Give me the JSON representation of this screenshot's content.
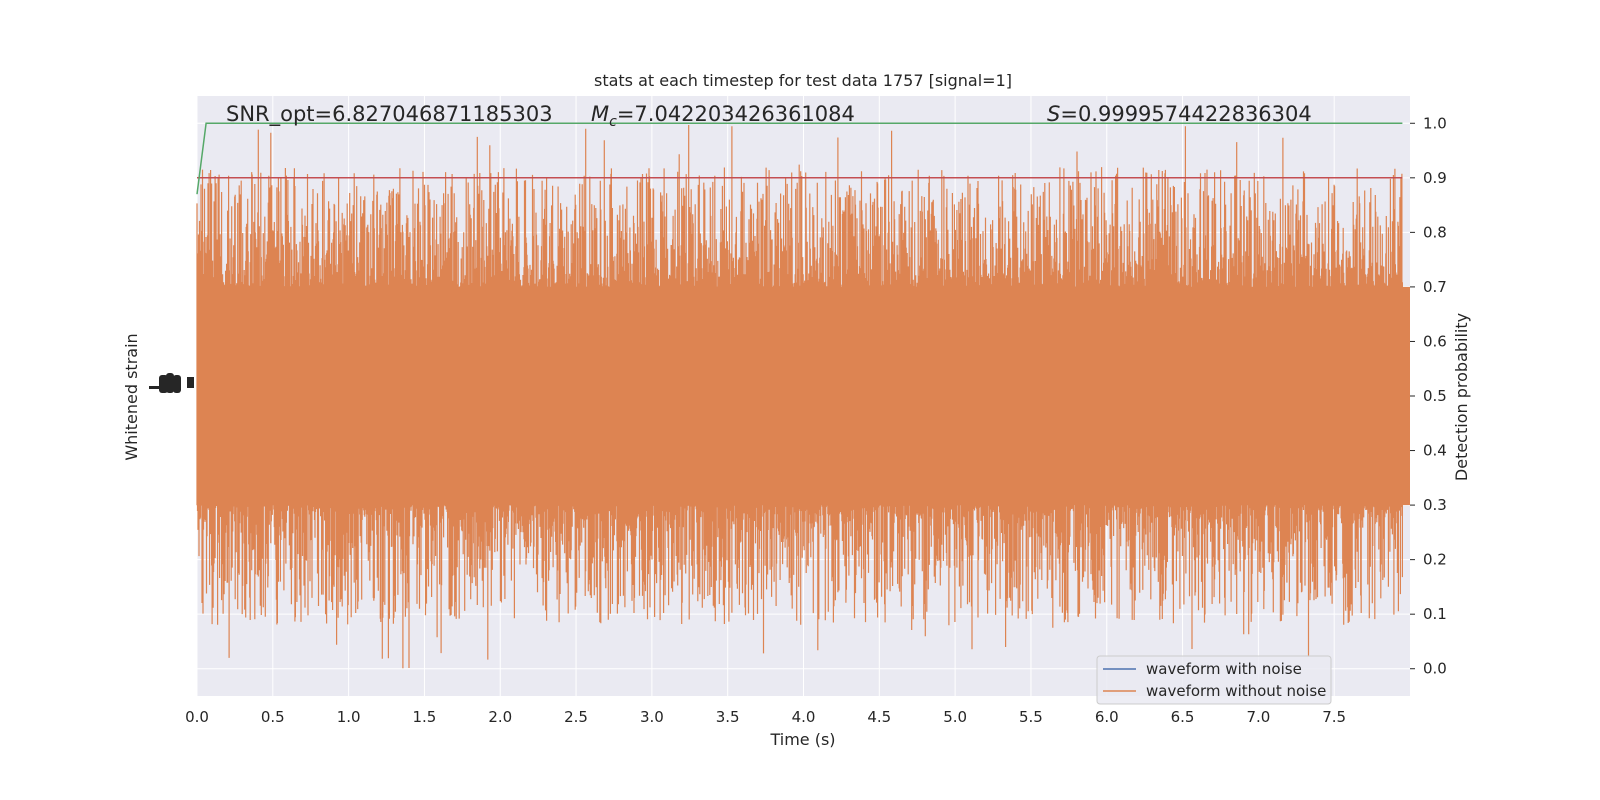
{
  "chart_data": {
    "type": "line",
    "title": "stats at each timestep for test data 1757 [signal=1]",
    "xlabel": "Time (s)",
    "ylabel_left": "Whitened strain",
    "ylabel_right": "Detection probability",
    "xlim": [
      0,
      8
    ],
    "ylim_right": [
      -0.05,
      1.05
    ],
    "x_ticks": [
      0.0,
      0.5,
      1.0,
      1.5,
      2.0,
      2.5,
      3.0,
      3.5,
      4.0,
      4.5,
      5.0,
      5.5,
      6.0,
      6.5,
      7.0,
      7.5
    ],
    "x_tick_labels": [
      "0.0",
      "0.5",
      "1.0",
      "1.5",
      "2.0",
      "2.5",
      "3.0",
      "3.5",
      "4.0",
      "4.5",
      "5.0",
      "5.5",
      "6.0",
      "6.5",
      "7.0",
      "7.5"
    ],
    "y_right_ticks": [
      0.0,
      0.1,
      0.2,
      0.3,
      0.4,
      0.5,
      0.6,
      0.7,
      0.8,
      0.9,
      1.0
    ],
    "y_right_tick_labels": [
      "0.0",
      "0.1",
      "0.2",
      "0.3",
      "0.4",
      "0.5",
      "0.6",
      "0.7",
      "0.8",
      "0.9",
      "1.0"
    ],
    "grid": true,
    "legend_position": "lower-right",
    "annotations": {
      "snr": "SNR_opt=6.827046871185303",
      "mc_symbol": "M",
      "mc_sub": "c",
      "mc_value": "=7.042203426361084",
      "s_symbol": "S",
      "s_value": "=0.9999574422836304"
    },
    "series": [
      {
        "name": "waveform with noise",
        "color": "#4c72b0",
        "axis": "left",
        "note_values": "whitened noisy strain, ~0.4-0.6 range, mostly hidden"
      },
      {
        "name": "waveform without noise",
        "color": "#dd8452",
        "axis": "left",
        "envelope": {
          "center": 0.5,
          "typical_low": 0.3,
          "typical_high": 0.7,
          "max_spike": 1.0,
          "min_spike": 0.0
        }
      },
      {
        "name": "Detection probability",
        "color": "#55a868",
        "axis": "right",
        "x": [
          0.0,
          0.06,
          7.95
        ],
        "y": [
          0.87,
          1.0,
          1.0
        ]
      },
      {
        "name": "threshold",
        "color": "#c44e52",
        "axis": "right",
        "x": [
          0.0,
          7.95
        ],
        "y": [
          0.9,
          0.9
        ]
      }
    ]
  }
}
